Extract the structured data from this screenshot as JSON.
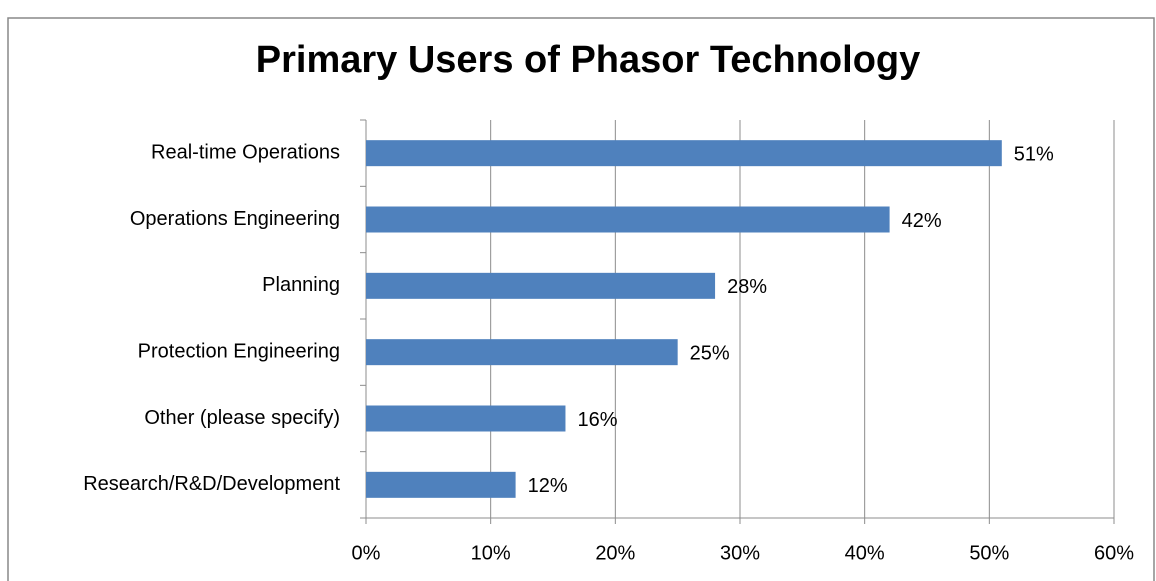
{
  "chart_data": {
    "type": "bar",
    "orientation": "horizontal",
    "title": "Primary Users of Phasor Technology",
    "categories": [
      "Real-time Operations",
      "Operations Engineering",
      "Planning",
      "Protection Engineering",
      "Other (please specify)",
      "Research/R&D/Development"
    ],
    "values": [
      51,
      42,
      28,
      25,
      16,
      12
    ],
    "value_labels": [
      "51%",
      "42%",
      "28%",
      "25%",
      "16%",
      "12%"
    ],
    "color": "#4f81bd",
    "xlim": [
      0,
      60
    ],
    "xticks": [
      {
        "value": 0,
        "label": "0%"
      },
      {
        "value": 10,
        "label": "10%"
      },
      {
        "value": 20,
        "label": "20%"
      },
      {
        "value": 30,
        "label": "30%"
      },
      {
        "value": 40,
        "label": "40%"
      },
      {
        "value": 50,
        "label": "50%"
      },
      {
        "value": 60,
        "label": "60%"
      }
    ],
    "grid": true
  }
}
